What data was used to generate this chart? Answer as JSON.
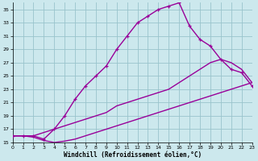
{
  "xlabel": "Windchill (Refroidissement éolien,°C)",
  "bg_color": "#cce8ed",
  "grid_color": "#99c4cc",
  "line_color": "#990099",
  "xmin": 0,
  "xmax": 23,
  "ymin": 15,
  "ymax": 36,
  "yticks": [
    15,
    17,
    19,
    21,
    23,
    25,
    27,
    29,
    31,
    33,
    35
  ],
  "xticks": [
    0,
    1,
    2,
    3,
    4,
    5,
    6,
    7,
    8,
    9,
    10,
    11,
    12,
    13,
    14,
    15,
    16,
    17,
    18,
    19,
    20,
    21,
    22,
    23
  ],
  "line1_x": [
    0,
    1,
    2,
    3,
    4,
    5,
    6,
    7,
    8,
    9,
    10,
    11,
    12,
    13,
    14,
    15,
    16,
    17,
    18,
    19,
    20,
    21,
    22,
    23
  ],
  "line1_y": [
    16.0,
    16.0,
    16.0,
    15.5,
    17.0,
    19.0,
    21.5,
    23.5,
    25.0,
    26.5,
    29.0,
    31.0,
    33.0,
    34.0,
    35.0,
    35.5,
    36.0,
    32.5,
    30.5,
    29.5,
    27.5,
    26.0,
    25.5,
    23.5
  ],
  "line2_x": [
    0,
    1,
    2,
    3,
    4,
    5,
    6,
    7,
    8,
    9,
    10,
    11,
    12,
    13,
    14,
    15,
    16,
    17,
    18,
    19,
    20,
    21,
    22,
    23
  ],
  "line2_y": [
    16.0,
    16.0,
    16.0,
    16.5,
    17.0,
    17.5,
    18.0,
    18.5,
    19.0,
    19.5,
    20.5,
    21.0,
    21.5,
    22.0,
    22.5,
    23.0,
    24.0,
    25.0,
    26.0,
    27.0,
    27.5,
    27.0,
    26.0,
    24.0
  ],
  "line3_x": [
    0,
    1,
    2,
    3,
    4,
    5,
    6,
    7,
    8,
    9,
    10,
    11,
    12,
    13,
    14,
    15,
    16,
    17,
    18,
    19,
    20,
    21,
    22,
    23
  ],
  "line3_y": [
    16.0,
    16.0,
    15.8,
    15.3,
    15.0,
    15.2,
    15.5,
    16.0,
    16.5,
    17.0,
    17.5,
    18.0,
    18.5,
    19.0,
    19.5,
    20.0,
    20.5,
    21.0,
    21.5,
    22.0,
    22.5,
    23.0,
    23.5,
    24.0
  ]
}
